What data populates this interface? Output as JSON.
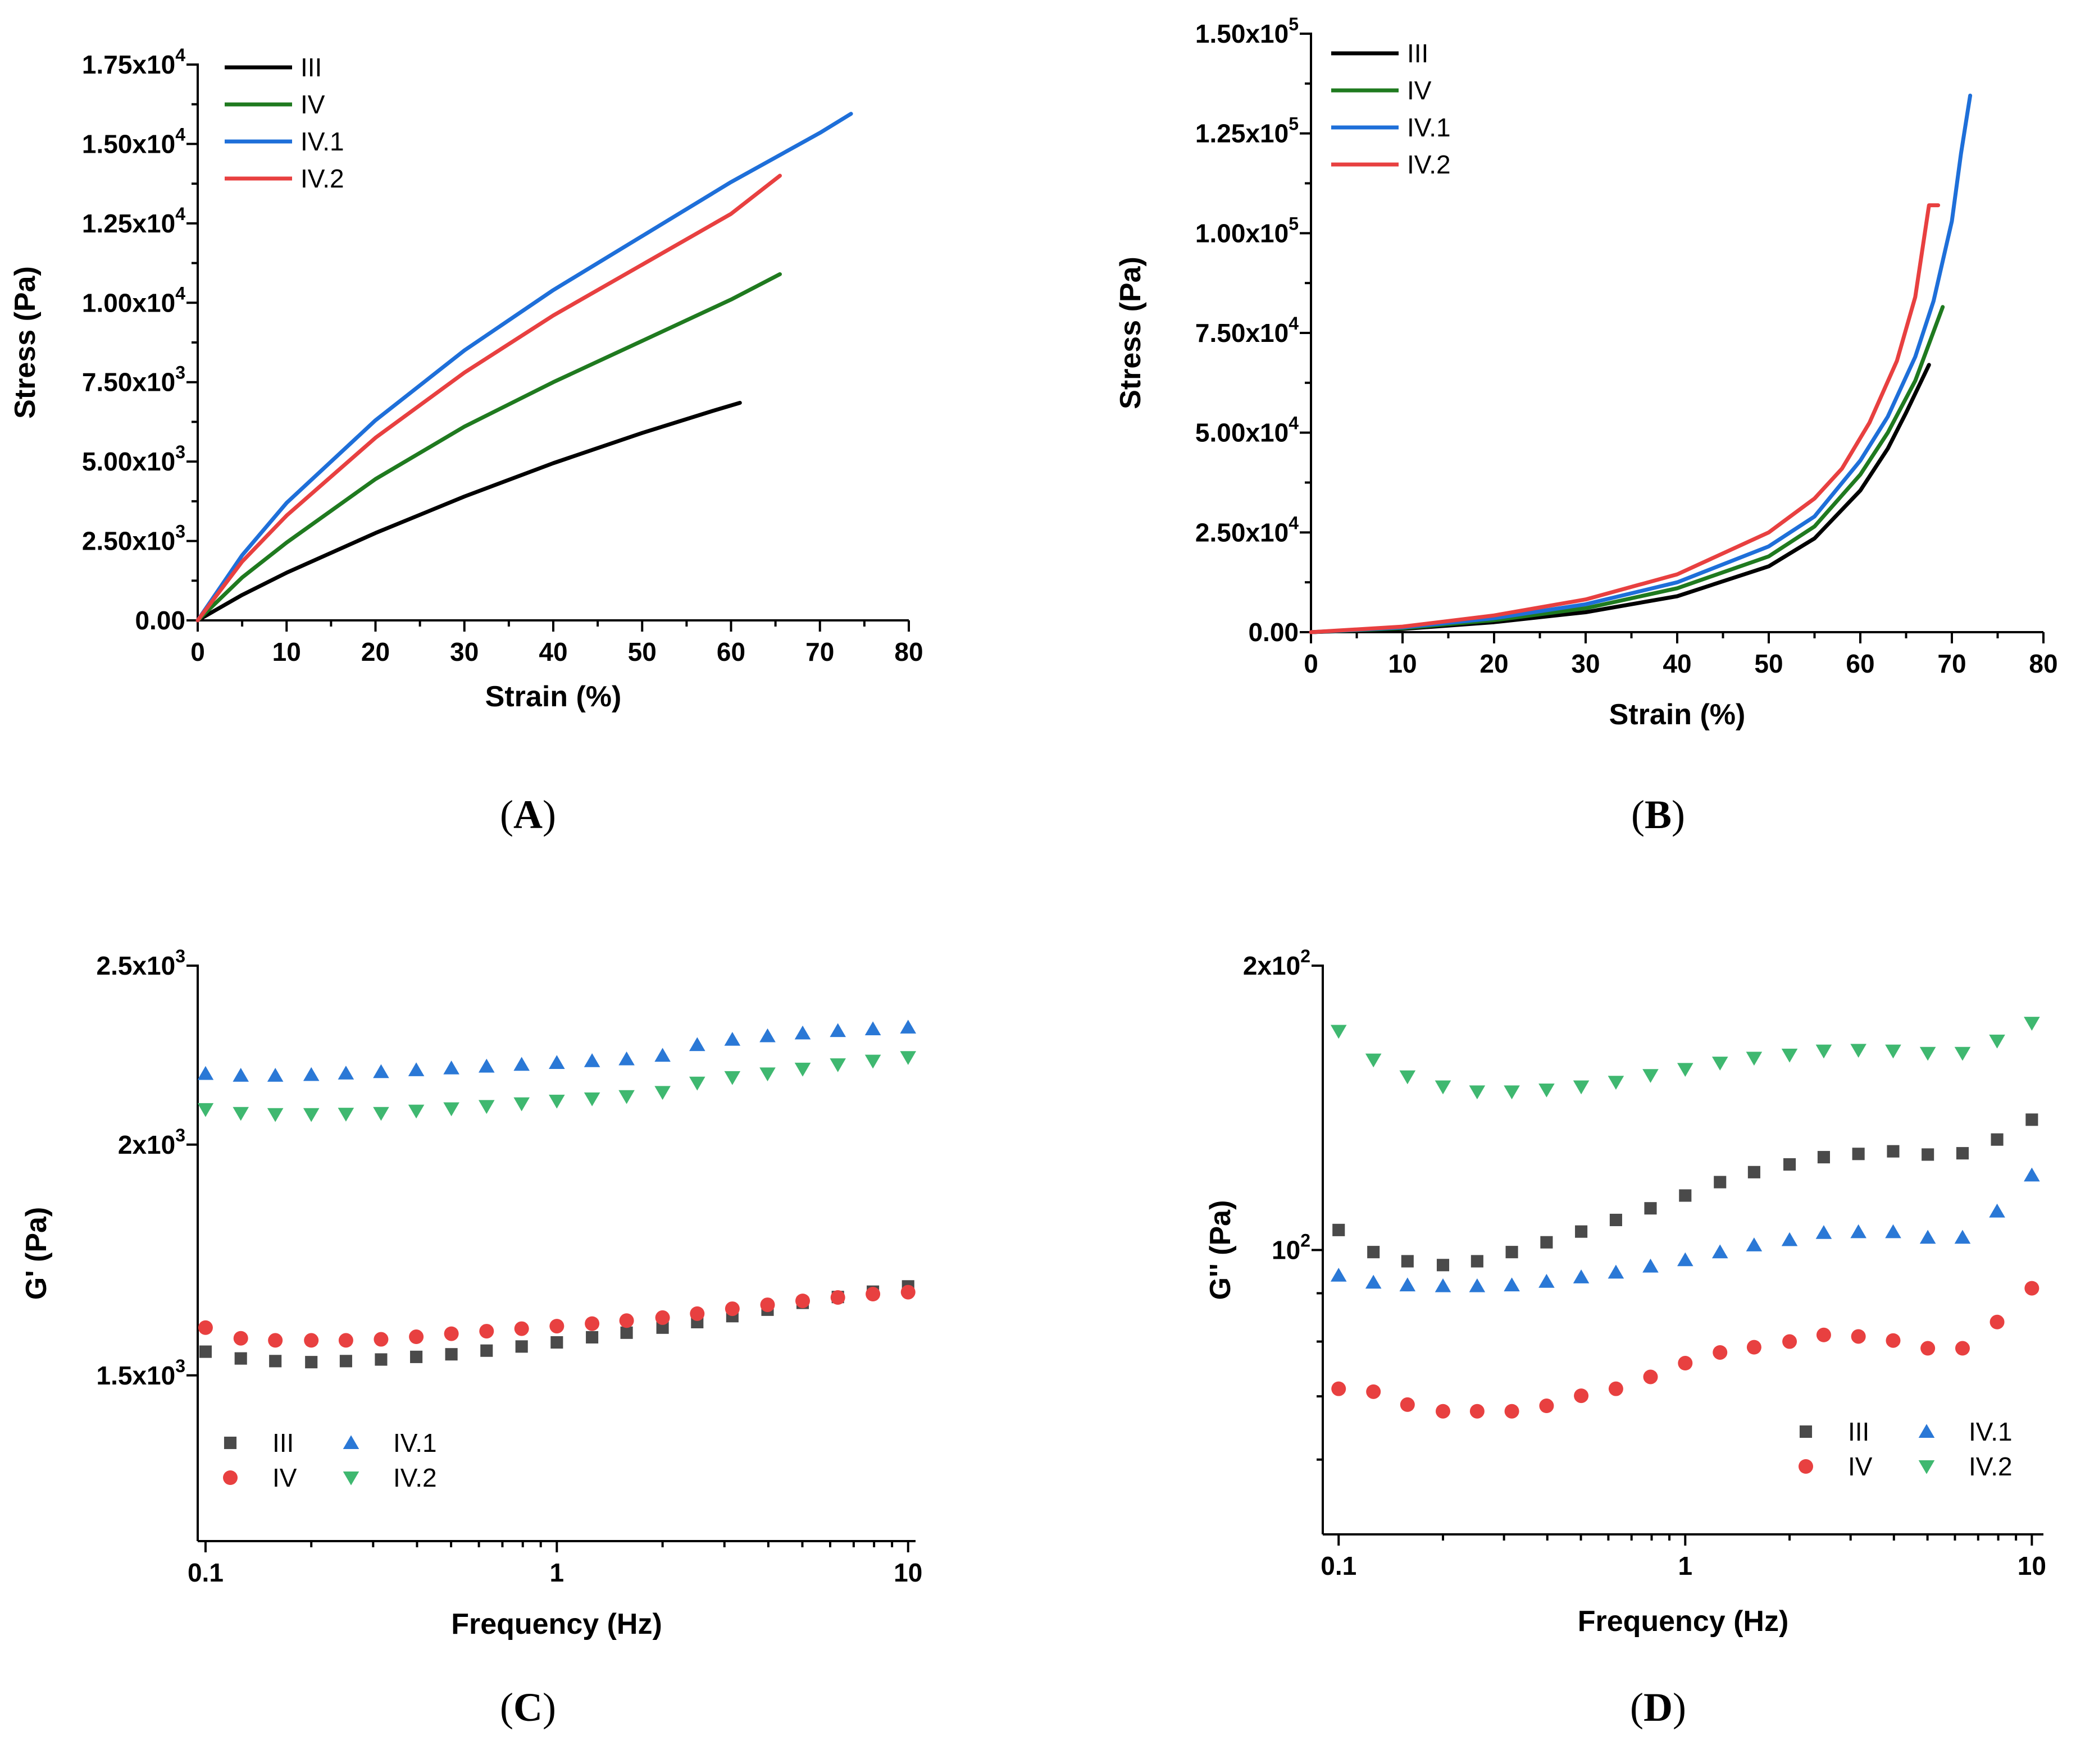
{
  "colors": {
    "III": "#000000",
    "IV": "#1f7a1f",
    "IV.1": "#1e6fd9",
    "IV.2": "#e84040",
    "markers": {
      "III": "#4a4a4a",
      "IV": "#e84040",
      "IV.1": "#2a78d6",
      "IV.2": "#3fb870"
    }
  },
  "chart_data": [
    {
      "id": "A",
      "type": "line",
      "caption": {
        "open": "(",
        "letter": "A",
        "close": ")"
      },
      "xlabel": "Strain (%)",
      "ylabel": "Stress (Pa)",
      "xlim": [
        0,
        80
      ],
      "ylim": [
        0,
        17500
      ],
      "xticks": [
        0,
        10,
        20,
        30,
        40,
        50,
        60,
        70,
        80
      ],
      "xtick_labels": [
        "0",
        "10",
        "20",
        "30",
        "40",
        "50",
        "60",
        "70",
        "80"
      ],
      "yticks": [
        0,
        2500,
        5000,
        7500,
        10000,
        12500,
        15000,
        17500
      ],
      "ytick_labels": [
        {
          "mant": "0.00",
          "exp": ""
        },
        {
          "mant": "2.50x10",
          "exp": "3"
        },
        {
          "mant": "5.00x10",
          "exp": "3"
        },
        {
          "mant": "7.50x10",
          "exp": "3"
        },
        {
          "mant": "1.00x10",
          "exp": "4"
        },
        {
          "mant": "1.25x10",
          "exp": "4"
        },
        {
          "mant": "1.50x10",
          "exp": "4"
        },
        {
          "mant": "1.75x10",
          "exp": "4"
        }
      ],
      "legend": [
        "III",
        "IV",
        "IV.1",
        "IV.2"
      ],
      "series": [
        {
          "name": "III",
          "x": [
            0,
            5,
            10,
            20,
            30,
            40,
            50,
            58,
            61
          ],
          "y": [
            0,
            800,
            1500,
            2750,
            3900,
            4950,
            5900,
            6600,
            6850
          ]
        },
        {
          "name": "IV",
          "x": [
            0,
            5,
            10,
            20,
            30,
            40,
            50,
            60,
            65.5
          ],
          "y": [
            0,
            1350,
            2450,
            4450,
            6100,
            7500,
            8800,
            10100,
            10900
          ]
        },
        {
          "name": "IV.1",
          "x": [
            0,
            5,
            10,
            20,
            30,
            40,
            50,
            60,
            70,
            73.5
          ],
          "y": [
            0,
            2050,
            3700,
            6300,
            8500,
            10400,
            12100,
            13800,
            15350,
            15950
          ]
        },
        {
          "name": "IV.2",
          "x": [
            0,
            5,
            10,
            20,
            30,
            40,
            50,
            60,
            65.5
          ],
          "y": [
            0,
            1850,
            3300,
            5750,
            7800,
            9600,
            11200,
            12800,
            14000
          ]
        }
      ]
    },
    {
      "id": "B",
      "type": "line",
      "caption": {
        "open": "(",
        "letter": "B",
        "close": ")"
      },
      "xlabel": "Strain (%)",
      "ylabel": "Stress (Pa)",
      "xlim": [
        0,
        80
      ],
      "ylim": [
        0,
        150000
      ],
      "xticks": [
        0,
        10,
        20,
        30,
        40,
        50,
        60,
        70,
        80
      ],
      "xtick_labels": [
        "0",
        "10",
        "20",
        "30",
        "40",
        "50",
        "60",
        "70",
        "80"
      ],
      "yticks": [
        0,
        25000,
        50000,
        75000,
        100000,
        125000,
        150000
      ],
      "ytick_labels": [
        {
          "mant": "0.00",
          "exp": ""
        },
        {
          "mant": "2.50x10",
          "exp": "4"
        },
        {
          "mant": "5.00x10",
          "exp": "4"
        },
        {
          "mant": "7.50x10",
          "exp": "4"
        },
        {
          "mant": "1.00x10",
          "exp": "5"
        },
        {
          "mant": "1.25x10",
          "exp": "5"
        },
        {
          "mant": "1.50x10",
          "exp": "5"
        }
      ],
      "legend": [
        "III",
        "IV",
        "IV.1",
        "IV.2"
      ],
      "series": [
        {
          "name": "III",
          "x": [
            0,
            10,
            20,
            30,
            40,
            50,
            55,
            60,
            63,
            65,
            67.5
          ],
          "y": [
            0,
            800,
            2500,
            5000,
            9000,
            16500,
            23500,
            35500,
            46000,
            55000,
            67000
          ]
        },
        {
          "name": "IV",
          "x": [
            0,
            10,
            20,
            30,
            40,
            50,
            55,
            60,
            63,
            66,
            69
          ],
          "y": [
            0,
            1000,
            3000,
            6000,
            11000,
            19000,
            26500,
            39500,
            50000,
            63000,
            81500
          ]
        },
        {
          "name": "IV.1",
          "x": [
            0,
            10,
            20,
            30,
            40,
            50,
            55,
            60,
            63,
            66,
            68,
            70,
            71,
            72
          ],
          "y": [
            0,
            1200,
            3500,
            7000,
            12500,
            21500,
            29000,
            43000,
            54000,
            69000,
            83000,
            103000,
            120000,
            134500
          ]
        },
        {
          "name": "IV.2",
          "x": [
            0,
            10,
            20,
            30,
            40,
            50,
            55,
            58,
            61,
            64,
            66,
            67.5,
            68.5
          ],
          "y": [
            0,
            1400,
            4200,
            8200,
            14500,
            25000,
            33500,
            41000,
            52500,
            68000,
            84000,
            107000,
            107000
          ]
        }
      ]
    },
    {
      "id": "C",
      "type": "scatter",
      "caption": {
        "open": "(",
        "letter": "C",
        "close": ")"
      },
      "xlabel": "Frequency (Hz)",
      "ylabel": "G' (Pa)",
      "xscale": "log",
      "yscale": "log",
      "xlim": [
        0.095,
        10.5
      ],
      "ylim": [
        1220,
        2500
      ],
      "xticks": [
        0.1,
        1,
        10
      ],
      "xtick_labels": [
        "0.1",
        "1",
        "10"
      ],
      "yticks": [
        1500,
        2000,
        2500
      ],
      "ytick_labels": [
        {
          "mant": "1.5x10",
          "exp": "3"
        },
        {
          "mant": "2x10",
          "exp": "3"
        },
        {
          "mant": "2.5x10",
          "exp": "3"
        }
      ],
      "legend": [
        "III",
        "IV",
        "IV.1",
        "IV.2"
      ],
      "legend_position": "bottom-left",
      "x": [
        0.1,
        0.126,
        0.158,
        0.2,
        0.251,
        0.316,
        0.398,
        0.501,
        0.631,
        0.794,
        1.0,
        1.26,
        1.58,
        2.0,
        2.51,
        3.16,
        3.98,
        5.01,
        6.31,
        7.94,
        10.0
      ],
      "series": [
        {
          "name": "III",
          "marker": "square",
          "values": [
            1545,
            1532,
            1527,
            1525,
            1527,
            1530,
            1535,
            1540,
            1547,
            1555,
            1563,
            1573,
            1582,
            1592,
            1603,
            1615,
            1628,
            1642,
            1654,
            1665,
            1676
          ]
        },
        {
          "name": "IV",
          "marker": "circle",
          "values": [
            1592,
            1571,
            1567,
            1567,
            1567,
            1569,
            1574,
            1580,
            1585,
            1590,
            1595,
            1600,
            1606,
            1612,
            1620,
            1630,
            1638,
            1646,
            1653,
            1660,
            1664
          ]
        },
        {
          "name": "IV.1",
          "marker": "triangle-up",
          "values": [
            2185,
            2180,
            2180,
            2182,
            2186,
            2190,
            2195,
            2200,
            2205,
            2210,
            2215,
            2220,
            2225,
            2235,
            2265,
            2280,
            2290,
            2298,
            2305,
            2310,
            2315
          ]
        },
        {
          "name": "IV.2",
          "marker": "triangle-down",
          "values": [
            2090,
            2080,
            2077,
            2077,
            2078,
            2080,
            2086,
            2092,
            2098,
            2105,
            2112,
            2118,
            2124,
            2135,
            2160,
            2175,
            2185,
            2198,
            2210,
            2220,
            2230
          ]
        }
      ]
    },
    {
      "id": "D",
      "type": "scatter",
      "caption": {
        "open": "(",
        "letter": "D",
        "close": ")"
      },
      "xlabel": "Frequency (Hz)",
      "ylabel": "G'' (Pa)",
      "xscale": "log",
      "yscale": "log",
      "xlim": [
        0.09,
        10.8
      ],
      "ylim": [
        50,
        200
      ],
      "xticks": [
        0.1,
        1,
        10
      ],
      "xtick_labels": [
        "0.1",
        "1",
        "10"
      ],
      "yticks": [
        100,
        200
      ],
      "ytick_labels": [
        {
          "mant": "10",
          "exp": "2"
        },
        {
          "mant": "2x10",
          "exp": "2"
        }
      ],
      "legend": [
        "III",
        "IV",
        "IV.1",
        "IV.2"
      ],
      "legend_position": "bottom-right",
      "x": [
        0.1,
        0.126,
        0.158,
        0.2,
        0.251,
        0.316,
        0.398,
        0.501,
        0.631,
        0.794,
        1.0,
        1.26,
        1.58,
        2.0,
        2.51,
        3.16,
        3.98,
        5.01,
        6.31,
        7.94,
        10.0
      ],
      "series": [
        {
          "name": "III",
          "marker": "square",
          "values": [
            105,
            99.5,
            97.3,
            96.4,
            97.3,
            99.5,
            101.9,
            104.6,
            107.6,
            110.7,
            114.2,
            118,
            120.9,
            123.2,
            125.4,
            126.4,
            127.2,
            126.2,
            126.6,
            130.9,
            137.4
          ]
        },
        {
          "name": "IV",
          "marker": "circle",
          "values": [
            71.3,
            70.8,
            68.6,
            67.5,
            67.5,
            67.5,
            68.4,
            70.1,
            71.3,
            73.4,
            75.9,
            77.9,
            78.9,
            80,
            81.3,
            81,
            80.2,
            78.7,
            78.7,
            83.9,
            91.1
          ]
        },
        {
          "name": "IV.1",
          "marker": "triangle-up",
          "values": [
            94,
            92.4,
            91.8,
            91.6,
            91.6,
            91.8,
            92.6,
            93.6,
            94.7,
            96.1,
            97.6,
            99.5,
            101.2,
            102.5,
            104.3,
            104.5,
            104.5,
            103.1,
            103.1,
            109.9,
            120
          ]
        },
        {
          "name": "IV.2",
          "marker": "triangle-down",
          "values": [
            170.5,
            159,
            152.6,
            148.9,
            147.1,
            147.1,
            147.8,
            148.9,
            150.6,
            153.1,
            155.4,
            157.8,
            159.7,
            160.9,
            162.5,
            162.8,
            162.5,
            161.6,
            161.6,
            166.5,
            173.9
          ]
        }
      ]
    }
  ]
}
